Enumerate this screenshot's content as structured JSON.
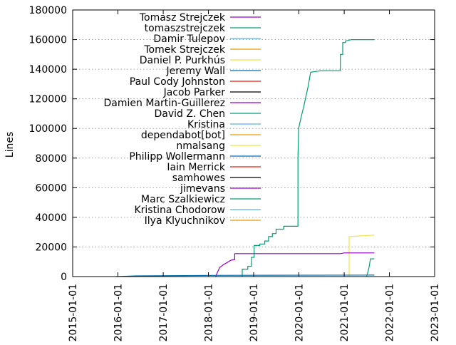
{
  "chart_data": {
    "type": "line",
    "title": "",
    "xlabel": "",
    "ylabel": "Lines",
    "xlim": [
      "2015-01-01",
      "2023-01-01"
    ],
    "ylim": [
      0,
      180000
    ],
    "grid": true,
    "legend_position": "top-left",
    "x_tick_labels": [
      "2015-01-01",
      "2016-01-01",
      "2017-01-01",
      "2018-01-01",
      "2019-01-01",
      "2020-01-01",
      "2021-01-01",
      "2022-01-01",
      "2023-01-01"
    ],
    "y_tick_labels": [
      "0",
      "20000",
      "40000",
      "60000",
      "80000",
      "100000",
      "120000",
      "140000",
      "160000",
      "180000"
    ],
    "series": [
      {
        "name": "Tomasz Strejczek",
        "color": "#9400d3",
        "points": []
      },
      {
        "name": "tomaszstrejczek",
        "color": "#009e73",
        "points": [
          [
            "2018-10-01",
            0
          ],
          [
            "2018-10-01",
            5000
          ],
          [
            "2018-11-15",
            5000
          ],
          [
            "2018-11-15",
            7000
          ],
          [
            "2018-12-15",
            7000
          ],
          [
            "2018-12-15",
            13000
          ],
          [
            "2019-01-05",
            13000
          ],
          [
            "2019-01-05",
            21000
          ],
          [
            "2019-02-20",
            21000
          ],
          [
            "2019-02-20",
            22000
          ],
          [
            "2019-04-01",
            22000
          ],
          [
            "2019-04-01",
            24000
          ],
          [
            "2019-05-01",
            24000
          ],
          [
            "2019-05-01",
            27000
          ],
          [
            "2019-06-01",
            27000
          ],
          [
            "2019-06-01",
            29000
          ],
          [
            "2019-07-01",
            29000
          ],
          [
            "2019-07-01",
            32000
          ],
          [
            "2019-09-01",
            32000
          ],
          [
            "2019-09-01",
            34000
          ],
          [
            "2019-11-01",
            34000
          ],
          [
            "2019-12-25",
            34000
          ],
          [
            "2019-12-25",
            80000
          ],
          [
            "2019-12-30",
            100000
          ],
          [
            "2020-01-20",
            108000
          ],
          [
            "2020-02-10",
            115000
          ],
          [
            "2020-03-15",
            128000
          ],
          [
            "2020-04-05",
            138000
          ],
          [
            "2020-07-01",
            139000
          ],
          [
            "2020-12-01",
            139000
          ],
          [
            "2020-12-01",
            150000
          ],
          [
            "2020-12-20",
            150000
          ],
          [
            "2020-12-20",
            158000
          ],
          [
            "2021-01-10",
            158000
          ],
          [
            "2021-01-10",
            159000
          ],
          [
            "2021-03-01",
            160000
          ],
          [
            "2021-09-01",
            160000
          ]
        ]
      },
      {
        "name": "Damir Tulepov",
        "color": "#56b4e9",
        "points": []
      },
      {
        "name": "Tomek Strejczek",
        "color": "#e69f00",
        "points": []
      },
      {
        "name": "Daniel P. Purkhús",
        "color": "#f0e442",
        "points": [
          [
            "2021-02-10",
            0
          ],
          [
            "2021-02-10",
            27000
          ],
          [
            "2021-09-01",
            28000
          ]
        ]
      },
      {
        "name": "Jeremy Wall",
        "color": "#0072b2",
        "points": [
          [
            "2015-12-15",
            0
          ],
          [
            "2016-06-01",
            500
          ],
          [
            "2018-03-01",
            800
          ],
          [
            "2021-09-01",
            1000
          ]
        ]
      },
      {
        "name": "Paul Cody Johnston",
        "color": "#e51e10",
        "points": []
      },
      {
        "name": "Jacob Parker",
        "color": "#000000",
        "points": []
      },
      {
        "name": "Damien Martin-Guillerez",
        "color": "#9400d3",
        "points": [
          [
            "2018-03-01",
            0
          ],
          [
            "2018-03-10",
            2000
          ],
          [
            "2018-04-01",
            6000
          ],
          [
            "2018-05-01",
            8000
          ],
          [
            "2018-06-01",
            9500
          ],
          [
            "2018-07-01",
            11000
          ],
          [
            "2018-08-01",
            11500
          ],
          [
            "2018-08-01",
            15500
          ],
          [
            "2018-10-01",
            15500
          ],
          [
            "2020-06-01",
            15500
          ],
          [
            "2020-12-01",
            15500
          ],
          [
            "2021-01-01",
            16000
          ],
          [
            "2021-09-01",
            16000
          ]
        ]
      },
      {
        "name": "David Z. Chen",
        "color": "#009e73",
        "points": [
          [
            "2021-07-01",
            0
          ],
          [
            "2021-07-20",
            6000
          ],
          [
            "2021-08-01",
            12000
          ],
          [
            "2021-09-01",
            12000
          ]
        ]
      },
      {
        "name": "Kristina",
        "color": "#56b4e9",
        "points": []
      },
      {
        "name": "dependabot[bot]",
        "color": "#e69f00",
        "points": []
      },
      {
        "name": "nmalsang",
        "color": "#f0e442",
        "points": []
      },
      {
        "name": "Philipp Wollermann",
        "color": "#0072b2",
        "points": []
      },
      {
        "name": "Iain Merrick",
        "color": "#e51e10",
        "points": []
      },
      {
        "name": "samhowes",
        "color": "#000000",
        "points": []
      },
      {
        "name": "jimevans",
        "color": "#9400d3",
        "points": []
      },
      {
        "name": "Marc Szalkiewicz",
        "color": "#009e73",
        "points": []
      },
      {
        "name": "Kristina Chodorow",
        "color": "#56b4e9",
        "points": []
      },
      {
        "name": "Ilya Klyuchnikov",
        "color": "#e69f00",
        "points": []
      }
    ]
  }
}
